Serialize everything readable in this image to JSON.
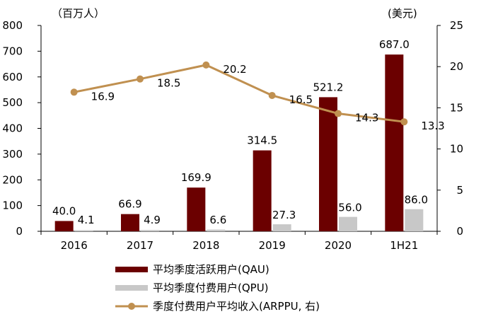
{
  "chart_data": {
    "type": "bar",
    "categories": [
      "2016",
      "2017",
      "2018",
      "2019",
      "2020",
      "1H21"
    ],
    "left_unit": "（百万人）",
    "right_unit": "(美元)",
    "ylim": [
      0,
      800
    ],
    "yticks": [
      "0",
      "100",
      "200",
      "300",
      "400",
      "500",
      "600",
      "700",
      "800"
    ],
    "y2lim": [
      0,
      25
    ],
    "y2ticks": [
      "0",
      "5",
      "10",
      "15",
      "20",
      "25"
    ],
    "series": [
      {
        "name": "平均季度活跃用户(QAU)",
        "kind": "bar",
        "axis": "left",
        "color": "#6b0000",
        "values": [
          40.0,
          66.9,
          169.9,
          314.5,
          521.2,
          687.0
        ],
        "labels": [
          "40.0",
          "66.9",
          "169.9",
          "314.5",
          "521.2",
          "687.0"
        ]
      },
      {
        "name": "平均季度付费用户(QPU)",
        "kind": "bar",
        "axis": "left",
        "color": "#c8c8c8",
        "values": [
          4.1,
          4.9,
          6.6,
          27.3,
          56.0,
          86.0
        ],
        "labels": [
          "4.1",
          "4.9",
          "6.6",
          "27.3",
          "56.0",
          "86.0"
        ]
      },
      {
        "name": "季度付费用户平均收入(ARPPU, 右)",
        "kind": "line",
        "axis": "right",
        "color": "#c09050",
        "values": [
          16.9,
          18.5,
          20.2,
          16.5,
          14.3,
          13.3
        ],
        "labels": [
          "16.9",
          "18.5",
          "20.2",
          "16.5",
          "14.3",
          "13.3"
        ]
      }
    ],
    "grid": false,
    "legend_position": "bottom"
  }
}
